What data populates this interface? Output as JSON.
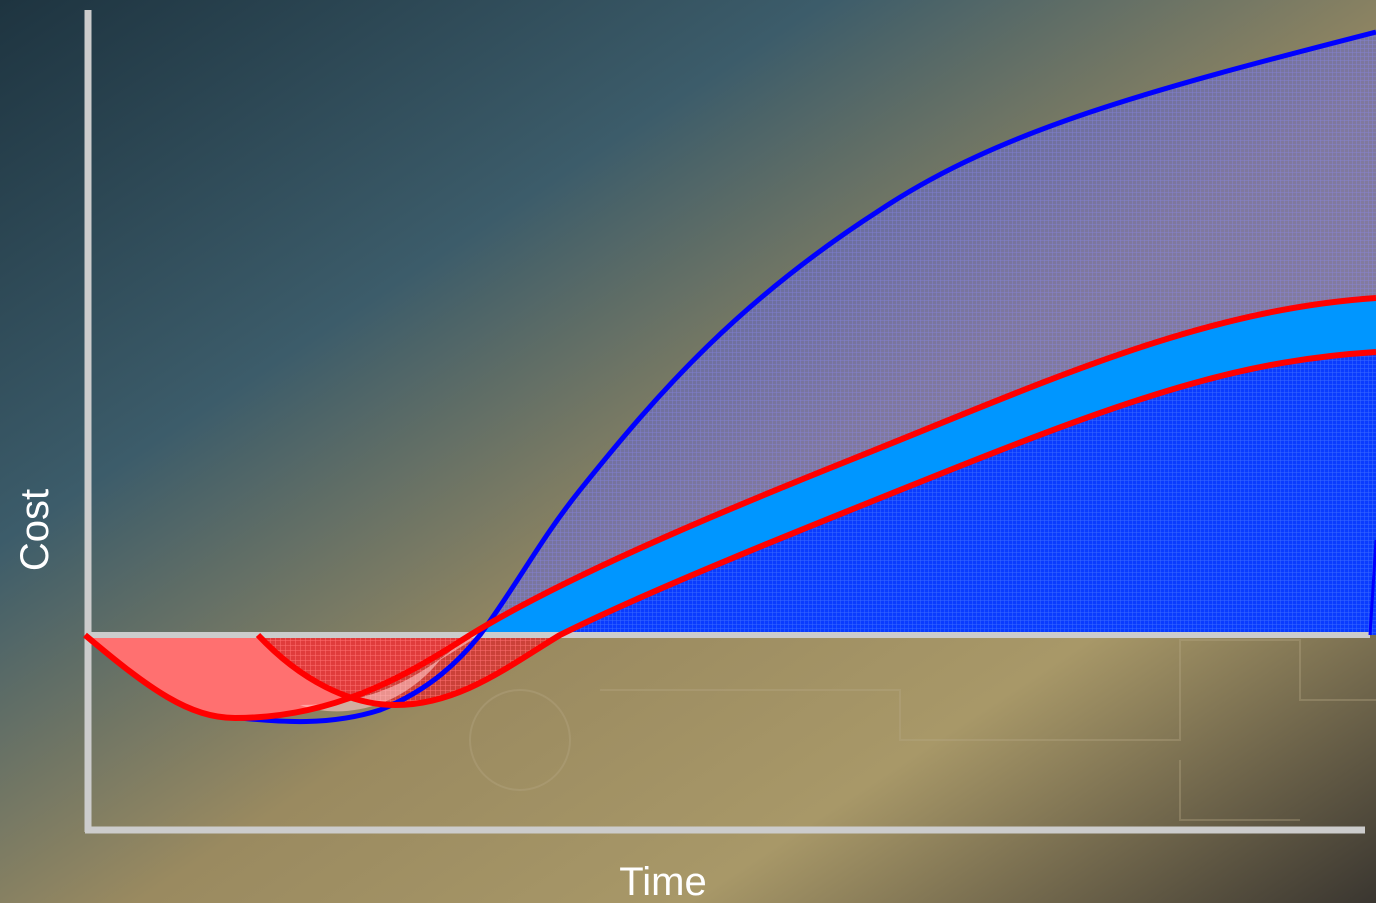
{
  "axes": {
    "y_label": "Cost",
    "x_label": "Time"
  }
}
